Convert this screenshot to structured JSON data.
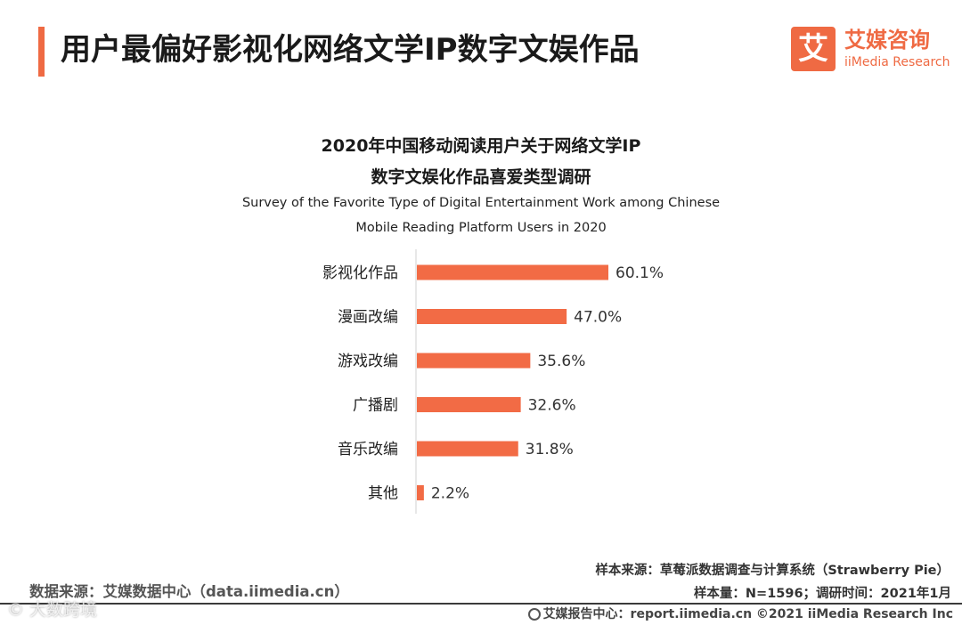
{
  "header": {
    "title": "用户最偏好影视化网络文学IP数字文娱作品",
    "logo_mark": "艾",
    "logo_cn": "艾媒咨询",
    "logo_en": "iiMedia Research"
  },
  "colors": {
    "accent": "#ef6a43",
    "bar": "#f26b45"
  },
  "chart_data": {
    "type": "bar",
    "orientation": "horizontal",
    "title_cn_line1": "2020年中国移动阅读用户关于网络文学IP",
    "title_cn_line2": "数字文娱化作品喜爱类型调研",
    "title_en_line1": "Survey of the Favorite Type of Digital Entertainment Work among Chinese",
    "title_en_line2": "Mobile Reading Platform Users in 2020",
    "categories": [
      "影视化作品",
      "漫画改编",
      "游戏改编",
      "广播剧",
      "音乐改编",
      "其他"
    ],
    "values": [
      60.1,
      47.0,
      35.6,
      32.6,
      31.8,
      2.2
    ],
    "value_labels": [
      "60.1%",
      "47.0%",
      "35.6%",
      "32.6%",
      "31.8%",
      "2.2%"
    ],
    "unit": "%",
    "xlim": [
      0,
      100
    ],
    "grid": false,
    "legend": "none"
  },
  "footer": {
    "source": "数据来源：艾媒数据中心（data.iimedia.cn）",
    "sample_source": "样本来源：草莓派数据调查与计算系统（Strawberry Pie）",
    "sample_info": "样本量：N=1596；调研时间：2021年1月",
    "report_center": "艾媒报告中心：report.iimedia.cn   ©2021  iiMedia Research  Inc",
    "watermark": "© 大数跨境"
  }
}
